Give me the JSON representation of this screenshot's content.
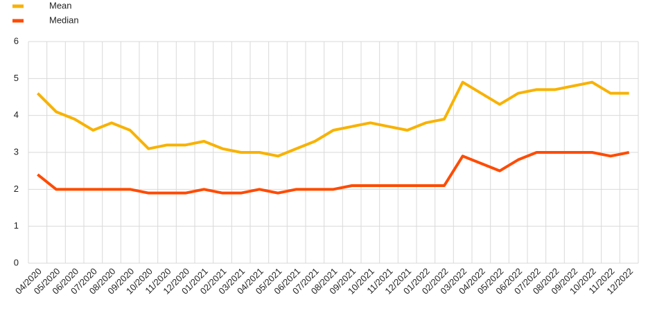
{
  "chart_data": {
    "type": "line",
    "categories": [
      "04/2020",
      "05/2020",
      "06/2020",
      "07/2020",
      "08/2020",
      "09/2020",
      "10/2020",
      "11/2020",
      "12/2020",
      "01/2021",
      "02/2021",
      "03/2021",
      "04/2021",
      "05/2021",
      "06/2021",
      "07/2021",
      "08/2021",
      "09/2021",
      "10/2021",
      "11/2021",
      "12/2021",
      "01/2022",
      "02/2022",
      "03/2022",
      "04/2022",
      "05/2022",
      "06/2022",
      "07/2022",
      "08/2022",
      "09/2022",
      "10/2022",
      "11/2022",
      "12/2022"
    ],
    "series": [
      {
        "name": "Mean",
        "color": "#f8b200",
        "values": [
          4.6,
          4.1,
          3.9,
          3.6,
          3.8,
          3.6,
          3.1,
          3.2,
          3.2,
          3.3,
          3.1,
          3.0,
          3.0,
          2.9,
          3.1,
          3.3,
          3.6,
          3.7,
          3.8,
          3.7,
          3.6,
          3.8,
          3.9,
          4.9,
          4.6,
          4.3,
          4.6,
          4.7,
          4.7,
          4.8,
          4.9,
          4.6,
          4.6
        ]
      },
      {
        "name": "Median",
        "color": "#ff4b00",
        "values": [
          2.4,
          2.0,
          2.0,
          2.0,
          2.0,
          2.0,
          1.9,
          1.9,
          1.9,
          2.0,
          1.9,
          1.9,
          2.0,
          1.9,
          2.0,
          2.0,
          2.0,
          2.1,
          2.1,
          2.1,
          2.1,
          2.1,
          2.1,
          2.9,
          2.7,
          2.5,
          2.8,
          3.0,
          3.0,
          3.0,
          3.0,
          2.9,
          3.0
        ]
      }
    ],
    "ylim": [
      0,
      6
    ],
    "yticks": [
      0,
      1,
      2,
      3,
      4,
      5,
      6
    ],
    "grid": true
  }
}
